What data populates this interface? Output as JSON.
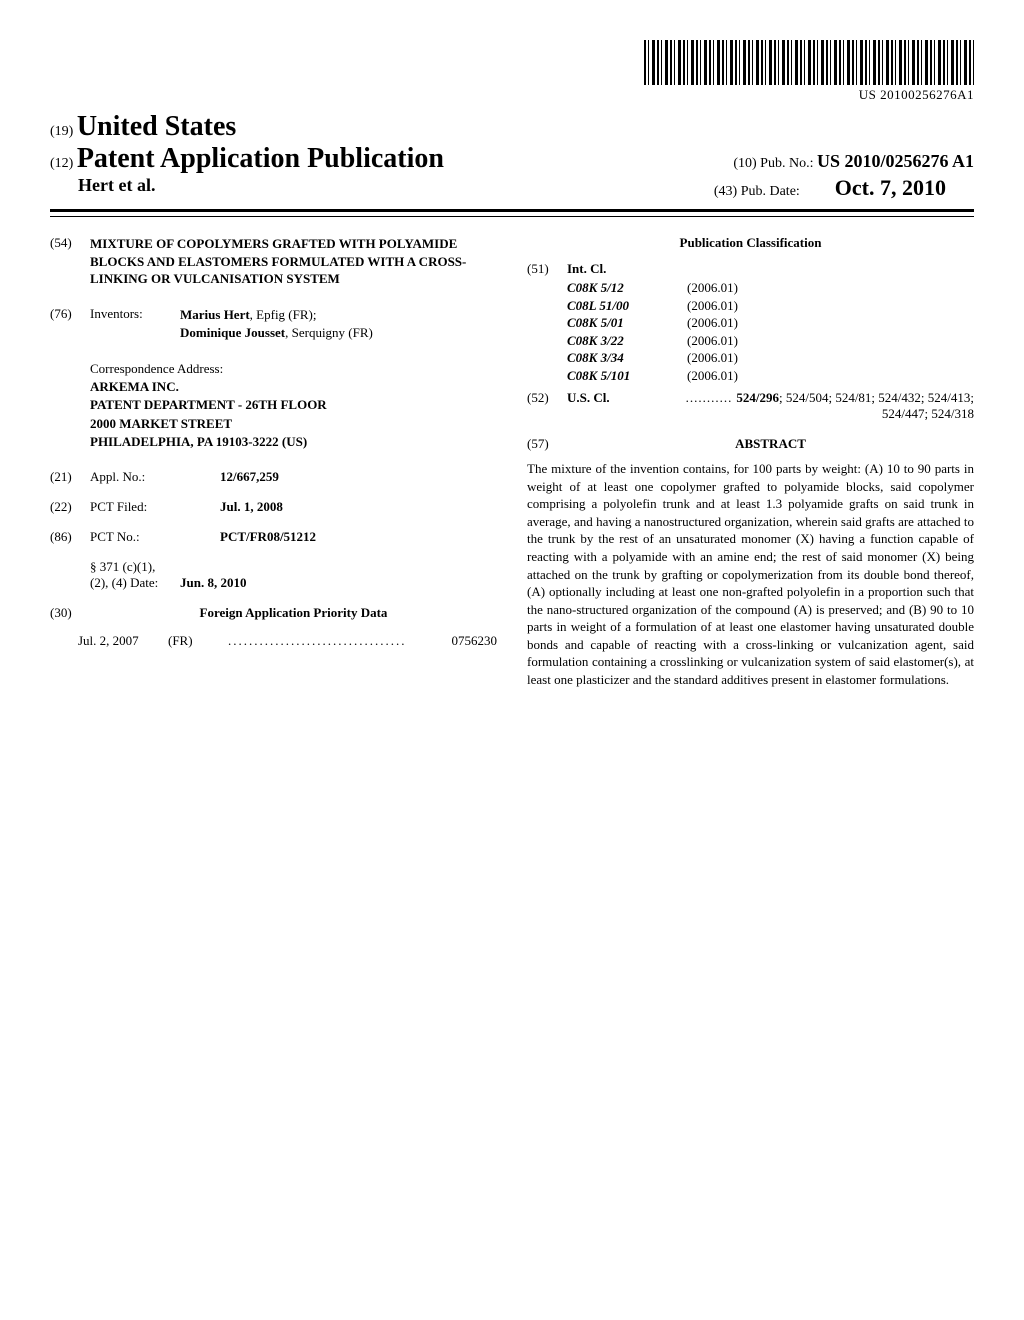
{
  "barcode_text": "US 20100256276A1",
  "header": {
    "prefix_19": "(19)",
    "country": "United States",
    "prefix_12": "(12)",
    "pub_type": "Patent Application Publication",
    "authors": "Hert et al.",
    "prefix_10": "(10)",
    "pub_num_label": "Pub. No.:",
    "pub_num": "US 2010/0256276 A1",
    "prefix_43": "(43)",
    "pub_date_label": "Pub. Date:",
    "pub_date": "Oct. 7, 2010"
  },
  "left": {
    "s54_num": "(54)",
    "s54_title": "MIXTURE OF COPOLYMERS GRAFTED WITH POLYAMIDE BLOCKS AND ELASTOMERS FORMULATED WITH A CROSS-LINKING OR VULCANISATION SYSTEM",
    "s76_num": "(76)",
    "s76_label": "Inventors:",
    "inventors": [
      {
        "name": "Marius Hert",
        "loc": ", Epfig (FR);"
      },
      {
        "name": "Dominique Jousset",
        "loc": ", Serquigny (FR)"
      }
    ],
    "correspondence_label": "Correspondence Address:",
    "correspondence_lines": [
      "ARKEMA INC.",
      "PATENT DEPARTMENT - 26TH FLOOR",
      "2000 MARKET STREET",
      "PHILADELPHIA, PA 19103-3222 (US)"
    ],
    "s21_num": "(21)",
    "s21_label": "Appl. No.:",
    "s21_value": "12/667,259",
    "s22_num": "(22)",
    "s22_label": "PCT Filed:",
    "s22_value": "Jul. 1, 2008",
    "s86_num": "(86)",
    "s86_label": "PCT No.:",
    "s86_value": "PCT/FR08/51212",
    "s371_label": "§ 371 (c)(1),\n(2), (4) Date:",
    "s371_value": "Jun. 8, 2010",
    "s30_num": "(30)",
    "s30_title": "Foreign Application Priority Data",
    "priority_date": "Jul. 2, 2007",
    "priority_country": "(FR)",
    "priority_num": "0756230"
  },
  "right": {
    "pub_class_title": "Publication Classification",
    "s51_num": "(51)",
    "s51_label": "Int. Cl.",
    "intcl": [
      {
        "code": "C08K 5/12",
        "year": "(2006.01)"
      },
      {
        "code": "C08L 51/00",
        "year": "(2006.01)"
      },
      {
        "code": "C08K 5/01",
        "year": "(2006.01)"
      },
      {
        "code": "C08K 3/22",
        "year": "(2006.01)"
      },
      {
        "code": "C08K 3/34",
        "year": "(2006.01)"
      },
      {
        "code": "C08K 5/101",
        "year": "(2006.01)"
      }
    ],
    "s52_num": "(52)",
    "s52_label": "U.S. Cl.",
    "s52_first": "524/296",
    "s52_rest": "; 524/504; 524/81; 524/432; 524/413; 524/447; 524/318",
    "s57_num": "(57)",
    "s57_title": "ABSTRACT",
    "abstract": "The mixture of the invention contains, for 100 parts by weight: (A) 10 to 90 parts in weight of at least one copolymer grafted to polyamide blocks, said copolymer comprising a polyolefin trunk and at least 1.3 polyamide grafts on said trunk in average, and having a nanostructured organization, wherein said grafts are attached to the trunk by the rest of an unsaturated monomer (X) having a function capable of reacting with a polyamide with an amine end; the rest of said monomer (X) being attached on the trunk by grafting or copolymerization from its double bond thereof, (A) optionally including at least one non-grafted polyolefin in a proportion such that the nano-structured organization of the compound (A) is preserved; and (B) 90 to 10 parts in weight of a formulation of at least one elastomer having unsaturated double bonds and capable of reacting with a cross-linking or vulcanization agent, said formulation containing a crosslinking or vulcanization system of said elastomer(s), at least one plasticizer and the standard additives present in elastomer formulations."
  }
}
